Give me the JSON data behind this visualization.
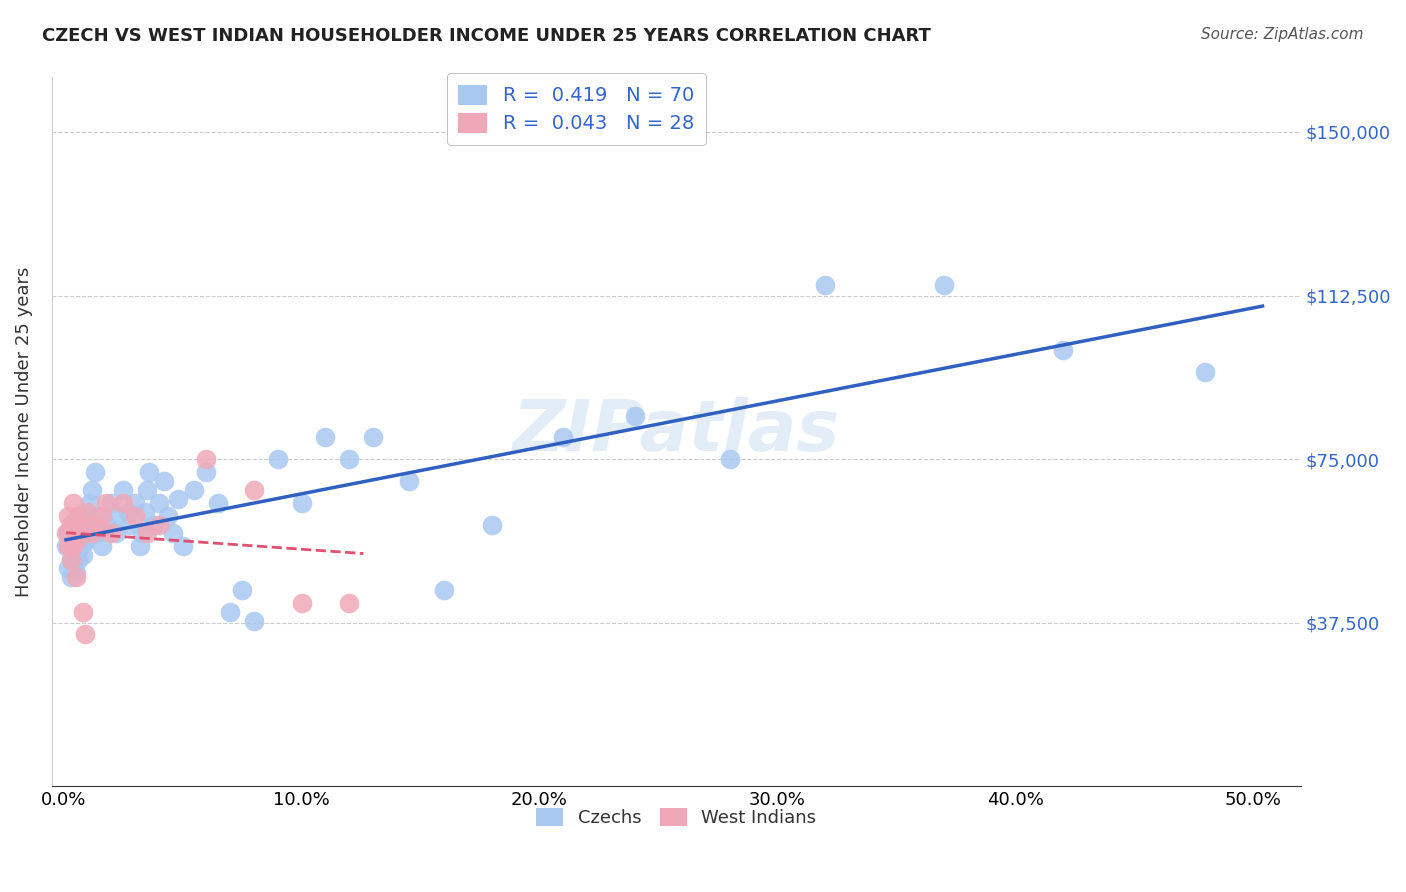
{
  "title": "CZECH VS WEST INDIAN HOUSEHOLDER INCOME UNDER 25 YEARS CORRELATION CHART",
  "source": "Source: ZipAtlas.com",
  "ylabel": "Householder Income Under 25 years",
  "xlabel_ticks": [
    "0.0%",
    "10.0%",
    "20.0%",
    "30.0%",
    "40.0%",
    "50.0%"
  ],
  "xlabel_vals": [
    0.0,
    0.1,
    0.2,
    0.3,
    0.4,
    0.5
  ],
  "ylabel_ticks": [
    "$37,500",
    "$75,000",
    "$112,500",
    "$150,000"
  ],
  "ylabel_vals": [
    37500,
    75000,
    112500,
    150000
  ],
  "ylim": [
    0,
    162500
  ],
  "xlim": [
    -0.005,
    0.52
  ],
  "watermark": "ZIPatlas",
  "legend1_label": "R =  0.419   N = 70",
  "legend2_label": "R =  0.043   N = 28",
  "blue_color": "#a8c8f0",
  "pink_color": "#f0a8b8",
  "blue_line_color": "#3060c0",
  "pink_line_color": "#e05070",
  "czechs_label": "Czechs",
  "west_indians_label": "West Indians",
  "czech_R": 0.419,
  "czech_N": 70,
  "west_indian_R": 0.043,
  "west_indian_N": 28,
  "czech_x": [
    0.001,
    0.002,
    0.002,
    0.003,
    0.003,
    0.003,
    0.004,
    0.004,
    0.004,
    0.005,
    0.005,
    0.005,
    0.006,
    0.006,
    0.006,
    0.007,
    0.007,
    0.008,
    0.008,
    0.009,
    0.009,
    0.01,
    0.01,
    0.011,
    0.012,
    0.013,
    0.014,
    0.015,
    0.016,
    0.018,
    0.02,
    0.022,
    0.023,
    0.025,
    0.027,
    0.028,
    0.03,
    0.032,
    0.033,
    0.034,
    0.035,
    0.036,
    0.038,
    0.04,
    0.042,
    0.044,
    0.046,
    0.048,
    0.05,
    0.055,
    0.06,
    0.065,
    0.07,
    0.075,
    0.08,
    0.09,
    0.1,
    0.11,
    0.12,
    0.13,
    0.145,
    0.16,
    0.18,
    0.21,
    0.24,
    0.28,
    0.32,
    0.37,
    0.42,
    0.48
  ],
  "czech_y": [
    55000,
    50000,
    58000,
    52000,
    60000,
    48000,
    55000,
    57000,
    51000,
    53000,
    56000,
    49000,
    54000,
    57000,
    52000,
    60000,
    55000,
    58000,
    53000,
    56000,
    62000,
    60000,
    57000,
    65000,
    68000,
    72000,
    58000,
    62000,
    55000,
    60000,
    65000,
    58000,
    62000,
    68000,
    63000,
    60000,
    65000,
    55000,
    58000,
    63000,
    68000,
    72000,
    60000,
    65000,
    70000,
    62000,
    58000,
    66000,
    55000,
    68000,
    72000,
    65000,
    40000,
    45000,
    38000,
    75000,
    65000,
    80000,
    75000,
    80000,
    70000,
    45000,
    60000,
    80000,
    85000,
    75000,
    115000,
    115000,
    100000,
    95000
  ],
  "west_indian_x": [
    0.001,
    0.002,
    0.002,
    0.003,
    0.003,
    0.004,
    0.004,
    0.005,
    0.005,
    0.006,
    0.006,
    0.007,
    0.008,
    0.009,
    0.01,
    0.012,
    0.014,
    0.016,
    0.018,
    0.02,
    0.025,
    0.03,
    0.035,
    0.04,
    0.06,
    0.08,
    0.1,
    0.12
  ],
  "west_indian_y": [
    58000,
    55000,
    62000,
    52000,
    60000,
    65000,
    55000,
    58000,
    48000,
    62000,
    57000,
    60000,
    40000,
    35000,
    63000,
    58000,
    60000,
    62000,
    65000,
    58000,
    65000,
    62000,
    58000,
    60000,
    75000,
    68000,
    42000,
    42000
  ]
}
